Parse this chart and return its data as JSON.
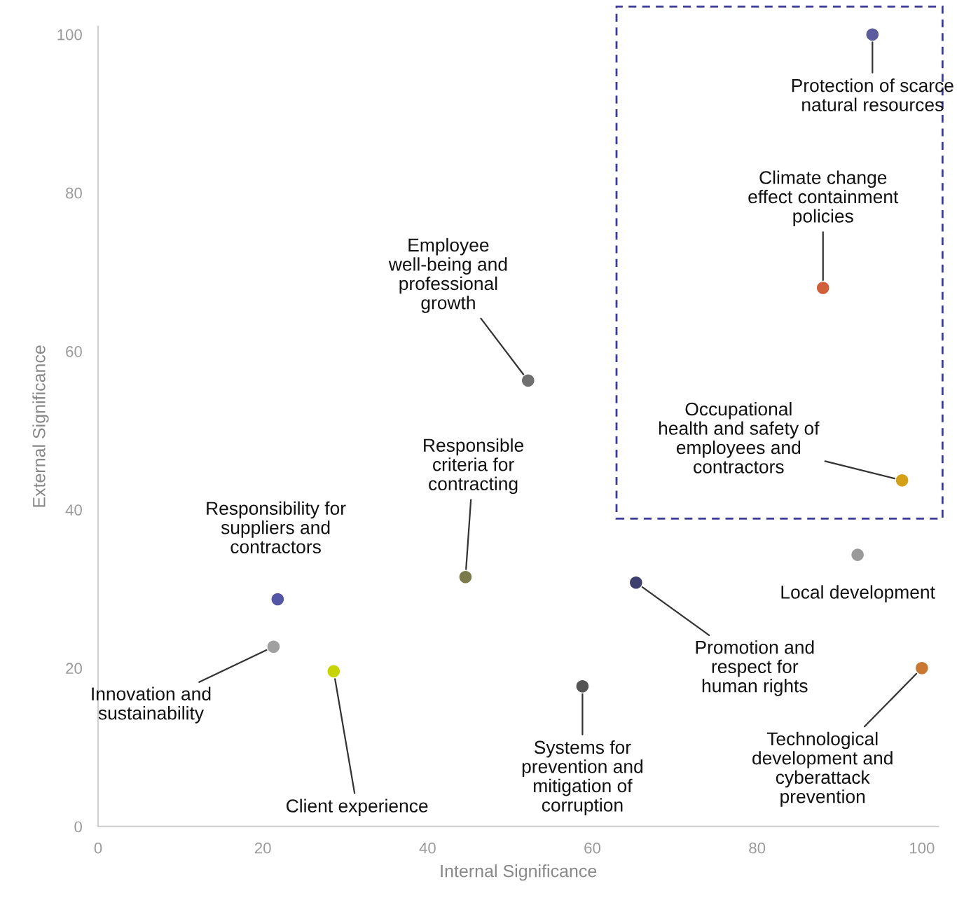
{
  "chart_data": {
    "type": "scatter",
    "xlabel": "Internal Significance",
    "ylabel": "External Significance",
    "x": [
      94,
      88,
      52.2,
      97.6,
      92.2,
      65.3,
      44.6,
      21.8,
      21.3,
      28.6,
      58.8,
      100
    ],
    "values": [
      100,
      68,
      56.3,
      43.7,
      34.3,
      30.8,
      31.5,
      28.7,
      22.7,
      19.6,
      17.7,
      20
    ],
    "colors": [
      "#5b5b9e",
      "#d0603a",
      "#707070",
      "#d4a017",
      "#9a9a9a",
      "#3f3f6e",
      "#7a7a4a",
      "#5555a5",
      "#a0a0a0",
      "#c8d400",
      "#555555",
      "#c87830"
    ],
    "annotations": [
      {
        "text": "Protection of scarce\nnatural resources",
        "x": 94,
        "y": 100
      },
      {
        "text": "Climate change\neffect containment\npolicies",
        "x": 88,
        "y": 68
      },
      {
        "text": "Employee\nwell-being and\nprofessional\ngrowth",
        "x": 52.2,
        "y": 56.3
      },
      {
        "text": "Occupational\nhealth and safety of\nemployees and\ncontractors",
        "x": 97.6,
        "y": 43.7
      },
      {
        "text": "Local development",
        "x": 92.2,
        "y": 34.3
      },
      {
        "text": "Promotion and\nrespect for\nhuman rights",
        "x": 65.3,
        "y": 30.8
      },
      {
        "text": "Responsible\ncriteria for\ncontracting",
        "x": 44.6,
        "y": 31.5
      },
      {
        "text": "Responsibility for\nsuppliers and\ncontractors",
        "x": 21.8,
        "y": 28.7
      },
      {
        "text": "Innovation and\nsustainability",
        "x": 21.3,
        "y": 22.7
      },
      {
        "text": "Client experience",
        "x": 28.6,
        "y": 19.6
      },
      {
        "text": "Systems for\nprevention and\nmitigation of\ncorruption",
        "x": 58.8,
        "y": 17.7
      },
      {
        "text": "Technological\ndevelopment and\ncyberattack\nprevention",
        "x": 100,
        "y": 20
      }
    ],
    "xlim": [
      0,
      102
    ],
    "ylim": [
      0,
      101
    ],
    "xticks": [
      0,
      20,
      40,
      60,
      80,
      100
    ],
    "yticks": [
      0,
      20,
      40,
      60,
      80,
      100
    ],
    "marker": "circle",
    "grid": false
  }
}
